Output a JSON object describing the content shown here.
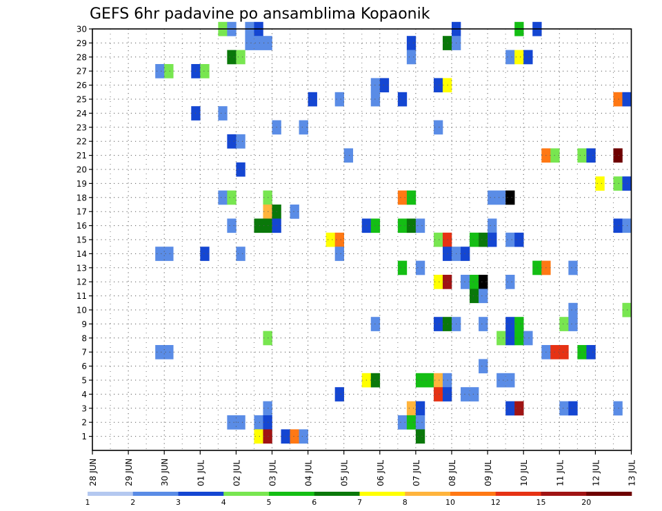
{
  "chart_data": {
    "type": "heatmap",
    "title": "GEFS 6hr padavine po ansamblima Kopaonik",
    "xlabel": "",
    "ylabel": "",
    "x_ticks": [
      "28 JUN",
      "29 JUN",
      "30 JUN",
      "01 JUL",
      "02 JUL",
      "03 JUL",
      "04 JUL",
      "05 JUL",
      "06 JUL",
      "07 JUL",
      "08 JUL",
      "09 JUL",
      "10 JUL",
      "11 JUL",
      "12 JUL",
      "13 JUL"
    ],
    "y_ticks": [
      1,
      2,
      3,
      4,
      5,
      6,
      7,
      8,
      9,
      10,
      11,
      12,
      13,
      14,
      15,
      16,
      17,
      18,
      19,
      20,
      21,
      22,
      23,
      24,
      25,
      26,
      27,
      28,
      29,
      30
    ],
    "xlim": [
      0,
      60
    ],
    "ylim": [
      0,
      30
    ],
    "x_unit": "6-hour step from 28 JUN 00",
    "grid": true,
    "legend": {
      "placement": "bottom",
      "labels": [
        "1",
        "2",
        "3",
        "4",
        "5",
        "6",
        "7",
        "8",
        "10",
        "12",
        "15",
        "20"
      ],
      "colors": [
        "#b4c8f0",
        "#5a8ce6",
        "#1446d2",
        "#78e650",
        "#14be14",
        "#0a780a",
        "#ffff00",
        "#ffb43c",
        "#ff7814",
        "#e63214",
        "#a01414",
        "#6e0000"
      ]
    },
    "cells": [
      [
        14.5,
        30,
        3
      ],
      [
        15.5,
        30,
        1
      ],
      [
        17.5,
        30,
        1
      ],
      [
        18.5,
        30,
        2
      ],
      [
        40.5,
        30,
        2
      ],
      [
        47.5,
        30,
        4
      ],
      [
        49.5,
        30,
        2
      ],
      [
        17.5,
        29,
        1
      ],
      [
        18.5,
        29,
        1
      ],
      [
        19.5,
        29,
        1
      ],
      [
        35.5,
        29,
        2
      ],
      [
        39.5,
        29,
        5
      ],
      [
        40.5,
        29,
        1
      ],
      [
        15.5,
        28,
        5
      ],
      [
        16.5,
        28,
        3
      ],
      [
        35.5,
        28,
        1
      ],
      [
        46.5,
        28,
        1
      ],
      [
        47.5,
        28,
        6
      ],
      [
        48.5,
        28,
        2
      ],
      [
        7.5,
        27,
        1
      ],
      [
        8.5,
        27,
        3
      ],
      [
        11.5,
        27,
        2
      ],
      [
        12.5,
        27,
        3
      ],
      [
        31.5,
        26,
        1
      ],
      [
        32.5,
        26,
        2
      ],
      [
        38.5,
        26,
        2
      ],
      [
        39.5,
        26,
        6
      ],
      [
        24.5,
        25,
        2
      ],
      [
        27.5,
        25,
        1
      ],
      [
        31.5,
        25,
        1
      ],
      [
        34.5,
        25,
        2
      ],
      [
        58.5,
        25,
        8
      ],
      [
        59.5,
        25,
        2
      ],
      [
        11.5,
        24,
        2
      ],
      [
        14.5,
        24,
        1
      ],
      [
        20.5,
        23,
        1
      ],
      [
        23.5,
        23,
        1
      ],
      [
        38.5,
        23,
        1
      ],
      [
        15.5,
        22,
        2
      ],
      [
        16.5,
        22,
        1
      ],
      [
        28.5,
        21,
        1
      ],
      [
        50.5,
        21,
        8
      ],
      [
        51.5,
        21,
        3
      ],
      [
        54.5,
        21,
        3
      ],
      [
        55.5,
        21,
        2
      ],
      [
        58.5,
        21,
        11
      ],
      [
        16.5,
        20,
        2
      ],
      [
        56.5,
        19,
        6
      ],
      [
        58.5,
        19,
        3
      ],
      [
        59.5,
        19,
        2
      ],
      [
        14.5,
        18,
        1
      ],
      [
        15.5,
        18,
        3
      ],
      [
        19.5,
        18,
        3
      ],
      [
        34.5,
        18,
        8
      ],
      [
        35.5,
        18,
        4
      ],
      [
        44.5,
        18,
        1
      ],
      [
        45.5,
        18,
        1
      ],
      [
        46.5,
        18,
        12
      ],
      [
        19.5,
        17,
        7
      ],
      [
        20.5,
        17,
        5
      ],
      [
        22.5,
        17,
        1
      ],
      [
        15.5,
        16,
        1
      ],
      [
        18.5,
        16,
        5
      ],
      [
        19.5,
        16,
        5
      ],
      [
        20.5,
        16,
        2
      ],
      [
        30.5,
        16,
        2
      ],
      [
        31.5,
        16,
        4
      ],
      [
        34.5,
        16,
        4
      ],
      [
        35.5,
        16,
        5
      ],
      [
        36.5,
        16,
        1
      ],
      [
        44.5,
        16,
        1
      ],
      [
        58.5,
        16,
        2
      ],
      [
        59.5,
        16,
        1
      ],
      [
        26.5,
        15,
        6
      ],
      [
        27.5,
        15,
        8
      ],
      [
        38.5,
        15,
        3
      ],
      [
        39.5,
        15,
        9
      ],
      [
        42.5,
        15,
        4
      ],
      [
        43.5,
        15,
        5
      ],
      [
        44.5,
        15,
        2
      ],
      [
        46.5,
        15,
        1
      ],
      [
        47.5,
        15,
        2
      ],
      [
        7.5,
        14,
        1
      ],
      [
        8.5,
        14,
        1
      ],
      [
        12.5,
        14,
        2
      ],
      [
        16.5,
        14,
        1
      ],
      [
        27.5,
        14,
        1
      ],
      [
        39.5,
        14,
        2
      ],
      [
        40.5,
        14,
        1
      ],
      [
        41.5,
        14,
        2
      ],
      [
        34.5,
        13,
        4
      ],
      [
        36.5,
        13,
        1
      ],
      [
        49.5,
        13,
        4
      ],
      [
        50.5,
        13,
        8
      ],
      [
        53.5,
        13,
        1
      ],
      [
        38.5,
        12,
        6
      ],
      [
        39.5,
        12,
        10
      ],
      [
        41.5,
        12,
        1
      ],
      [
        42.5,
        12,
        4
      ],
      [
        43.5,
        12,
        12
      ],
      [
        46.5,
        12,
        1
      ],
      [
        42.5,
        11,
        5
      ],
      [
        43.5,
        11,
        1
      ],
      [
        53.5,
        10,
        1
      ],
      [
        59.5,
        10,
        3
      ],
      [
        31.5,
        9,
        1
      ],
      [
        38.5,
        9,
        2
      ],
      [
        39.5,
        9,
        5
      ],
      [
        40.5,
        9,
        1
      ],
      [
        43.5,
        9,
        1
      ],
      [
        46.5,
        9,
        2
      ],
      [
        47.5,
        9,
        4
      ],
      [
        52.5,
        9,
        3
      ],
      [
        53.5,
        9,
        1
      ],
      [
        19.5,
        8,
        3
      ],
      [
        45.5,
        8,
        3
      ],
      [
        46.5,
        8,
        2
      ],
      [
        47.5,
        8,
        4
      ],
      [
        48.5,
        8,
        1
      ],
      [
        7.5,
        7,
        1
      ],
      [
        8.5,
        7,
        1
      ],
      [
        50.5,
        7,
        1
      ],
      [
        51.5,
        7,
        9
      ],
      [
        52.5,
        7,
        9
      ],
      [
        54.5,
        7,
        4
      ],
      [
        55.5,
        7,
        2
      ],
      [
        43.5,
        6,
        1
      ],
      [
        30.5,
        5,
        6
      ],
      [
        31.5,
        5,
        5
      ],
      [
        36.5,
        5,
        4
      ],
      [
        37.5,
        5,
        4
      ],
      [
        38.5,
        5,
        7
      ],
      [
        39.5,
        5,
        1
      ],
      [
        45.5,
        5,
        1
      ],
      [
        46.5,
        5,
        1
      ],
      [
        27.5,
        4,
        2
      ],
      [
        38.5,
        4,
        9
      ],
      [
        39.5,
        4,
        2
      ],
      [
        41.5,
        4,
        1
      ],
      [
        42.5,
        4,
        1
      ],
      [
        19.5,
        3,
        1
      ],
      [
        35.5,
        3,
        7
      ],
      [
        36.5,
        3,
        2
      ],
      [
        46.5,
        3,
        2
      ],
      [
        47.5,
        3,
        10
      ],
      [
        52.5,
        3,
        1
      ],
      [
        53.5,
        3,
        2
      ],
      [
        58.5,
        3,
        1
      ],
      [
        15.5,
        2,
        1
      ],
      [
        16.5,
        2,
        1
      ],
      [
        18.5,
        2,
        1
      ],
      [
        19.5,
        2,
        2
      ],
      [
        34.5,
        2,
        1
      ],
      [
        35.5,
        2,
        4
      ],
      [
        36.5,
        2,
        1
      ],
      [
        18.5,
        1,
        6
      ],
      [
        19.5,
        1,
        10
      ],
      [
        21.5,
        1,
        2
      ],
      [
        22.5,
        1,
        8
      ],
      [
        23.5,
        1,
        1
      ],
      [
        36.5,
        1,
        5
      ]
    ]
  }
}
